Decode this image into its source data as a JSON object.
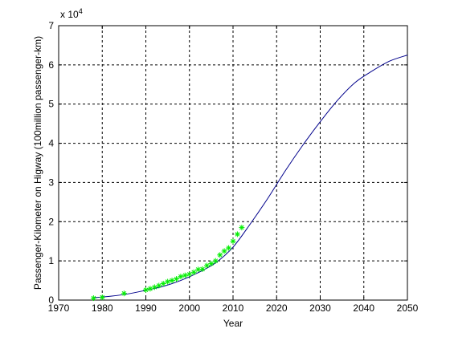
{
  "chart_data": {
    "type": "line",
    "xlabel": "Year",
    "ylabel": "Passenger-Kilometer on Higway (100million passenger-km)",
    "exponent_base": "x 10",
    "exponent_power": "4",
    "xlim": [
      1970,
      2050
    ],
    "ylim": [
      0,
      70000
    ],
    "xticks": [
      1970,
      1980,
      1990,
      2000,
      2010,
      2020,
      2030,
      2040,
      2050
    ],
    "yticks": [
      0,
      10000,
      20000,
      30000,
      40000,
      50000,
      60000,
      70000
    ],
    "ytick_labels": [
      "0",
      "1",
      "2",
      "3",
      "4",
      "5",
      "6",
      "7"
    ],
    "grid": true,
    "series": [
      {
        "kind": "line",
        "color": "#00008b",
        "x": [
          1978,
          1982,
          1986,
          1990,
          1994,
          1998,
          2002,
          2006,
          2010,
          2014,
          2018,
          2022,
          2026,
          2030,
          2034,
          2038,
          2042,
          2046,
          2050
        ],
        "y": [
          600,
          1000,
          1600,
          2500,
          3500,
          5000,
          7000,
          9500,
          13500,
          19500,
          26000,
          33000,
          39500,
          45500,
          51000,
          55500,
          58500,
          61000,
          62500
        ]
      },
      {
        "kind": "scatter",
        "marker": "asterisk",
        "color": "#00ee00",
        "x": [
          1978,
          1980,
          1985,
          1990,
          1991,
          1992,
          1993,
          1994,
          1995,
          1996,
          1997,
          1998,
          1999,
          2000,
          2001,
          2002,
          2003,
          2004,
          2005,
          2006,
          2007,
          2008,
          2009,
          2010,
          2011,
          2012
        ],
        "y": [
          500,
          700,
          1700,
          2600,
          2900,
          3300,
          3700,
          4200,
          4700,
          5000,
          5400,
          6000,
          6300,
          6600,
          7100,
          7800,
          7900,
          8800,
          9300,
          10000,
          11500,
          12500,
          13300,
          15000,
          16800,
          18500
        ]
      }
    ]
  }
}
